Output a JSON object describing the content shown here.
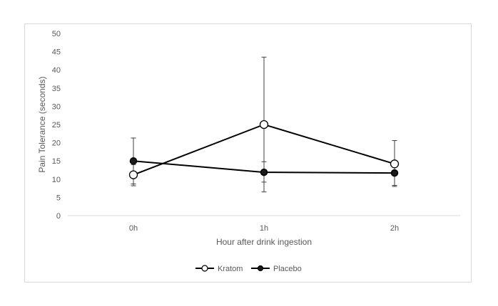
{
  "chart_data": {
    "type": "line",
    "title": "",
    "xlabel": "Hour after drink ingestion",
    "ylabel": "Pain Tolerance (seconds)",
    "categories": [
      "0h",
      "1h",
      "2h"
    ],
    "ylim": [
      0,
      50
    ],
    "yticks": [
      "0",
      "5",
      "10",
      "15",
      "20",
      "25",
      "30",
      "35",
      "40",
      "45",
      "50"
    ],
    "grid": false,
    "legend_position": "bottom",
    "series": [
      {
        "name": "Kratom",
        "marker": "open-circle",
        "values": [
          11.2,
          25.0,
          14.2
        ],
        "error_low": [
          8.2,
          9.2,
          8.0
        ],
        "error_high": [
          14.0,
          43.5,
          20.6
        ],
        "color": "#000000"
      },
      {
        "name": "Placebo",
        "marker": "filled-circle",
        "values": [
          15.0,
          11.9,
          11.7
        ],
        "error_low": [
          8.7,
          6.5,
          8.3
        ],
        "error_high": [
          21.3,
          14.8,
          13.6
        ],
        "color": "#000000"
      }
    ]
  }
}
